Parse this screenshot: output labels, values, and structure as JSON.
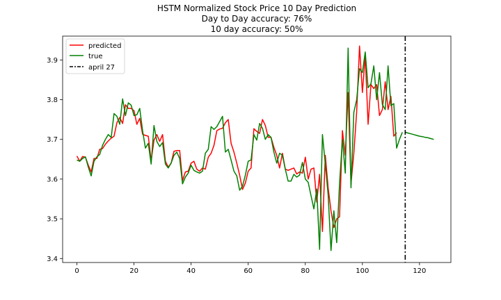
{
  "chart_data": {
    "type": "line",
    "title_lines": [
      "HSTM Normalized Stock Price 10 Day Prediction",
      "Day to Day accuracy: 76%",
      "10 day accuracy: 50%"
    ],
    "xlabel": "",
    "ylabel": "",
    "xlim": [
      -5,
      131
    ],
    "ylim": [
      3.39,
      3.96
    ],
    "xticks": [
      0,
      20,
      40,
      60,
      80,
      100,
      120
    ],
    "yticks": [
      3.4,
      3.5,
      3.6,
      3.7,
      3.8,
      3.9
    ],
    "ytick_labels": [
      "3.4",
      "3.5",
      "3.6",
      "3.7",
      "3.8",
      "3.9"
    ],
    "legend_position": "upper-left",
    "series": [
      {
        "name": "predicted",
        "color": "#ff0000",
        "y": [
          3.658,
          3.645,
          3.657,
          3.655,
          3.635,
          3.618,
          3.652,
          3.652,
          3.675,
          3.677,
          3.688,
          3.696,
          3.703,
          3.708,
          3.742,
          3.755,
          3.74,
          3.787,
          3.778,
          3.778,
          3.772,
          3.738,
          3.753,
          3.713,
          3.71,
          3.708,
          3.646,
          3.698,
          3.712,
          3.695,
          3.712,
          3.645,
          3.63,
          3.64,
          3.67,
          3.672,
          3.672,
          3.596,
          3.618,
          3.62,
          3.64,
          3.645,
          3.625,
          3.62,
          3.628,
          3.625,
          3.655,
          3.665,
          3.685,
          3.722,
          3.726,
          3.728,
          3.742,
          3.75,
          3.69,
          3.668,
          3.64,
          3.61,
          3.574,
          3.59,
          3.62,
          3.628,
          3.727,
          3.72,
          3.715,
          3.75,
          3.735,
          3.705,
          3.705,
          3.68,
          3.66,
          3.628,
          3.665,
          3.625,
          3.622,
          3.625,
          3.628,
          3.613,
          3.618,
          3.615,
          3.655,
          3.6,
          3.625,
          3.628,
          3.542,
          3.612,
          3.468,
          3.66,
          3.578,
          3.52,
          3.478,
          3.5,
          3.505,
          3.722,
          3.66,
          3.818,
          3.588,
          3.665,
          3.77,
          3.935,
          3.818,
          3.91,
          3.738,
          3.838,
          3.828,
          3.838,
          3.76,
          3.775,
          3.845,
          3.775,
          3.808,
          3.708,
          3.717
        ]
      },
      {
        "name": "true",
        "color": "#008000",
        "y": [
          3.648,
          3.645,
          3.652,
          3.656,
          3.63,
          3.608,
          3.645,
          3.656,
          3.662,
          3.685,
          3.7,
          3.712,
          3.705,
          3.765,
          3.758,
          3.738,
          3.802,
          3.76,
          3.792,
          3.786,
          3.76,
          3.762,
          3.778,
          3.722,
          3.678,
          3.69,
          3.638,
          3.735,
          3.695,
          3.682,
          3.692,
          3.638,
          3.628,
          3.64,
          3.66,
          3.668,
          3.652,
          3.588,
          3.605,
          3.615,
          3.635,
          3.622,
          3.618,
          3.615,
          3.62,
          3.665,
          3.675,
          3.732,
          3.725,
          3.732,
          3.745,
          3.758,
          3.668,
          3.675,
          3.648,
          3.62,
          3.608,
          3.572,
          3.582,
          3.61,
          3.645,
          3.648,
          3.712,
          3.698,
          3.74,
          3.728,
          3.7,
          3.712,
          3.705,
          3.668,
          3.64,
          3.665,
          3.66,
          3.625,
          3.595,
          3.595,
          3.612,
          3.605,
          3.61,
          3.642,
          3.6,
          3.592,
          3.558,
          3.525,
          3.575,
          3.423,
          3.712,
          3.638,
          3.56,
          3.42,
          3.52,
          3.44,
          3.59,
          3.7,
          3.615,
          3.93,
          3.578,
          3.768,
          3.8,
          3.878,
          3.868,
          3.92,
          3.83,
          3.84,
          3.885,
          3.8,
          3.868,
          3.788,
          3.775,
          3.885,
          3.785,
          3.79,
          3.678,
          3.7,
          3.718
        ],
        "forecast": {
          "x": [
            115,
            116,
            117,
            118,
            119,
            120,
            121,
            122,
            123,
            124,
            125
          ],
          "y": [
            3.718,
            3.716,
            3.714,
            3.712,
            3.71,
            3.708,
            3.707,
            3.705,
            3.704,
            3.702,
            3.7
          ]
        }
      }
    ],
    "vline": {
      "name": "april 27",
      "x": 115,
      "color": "#000000",
      "style": "dashdot"
    }
  }
}
